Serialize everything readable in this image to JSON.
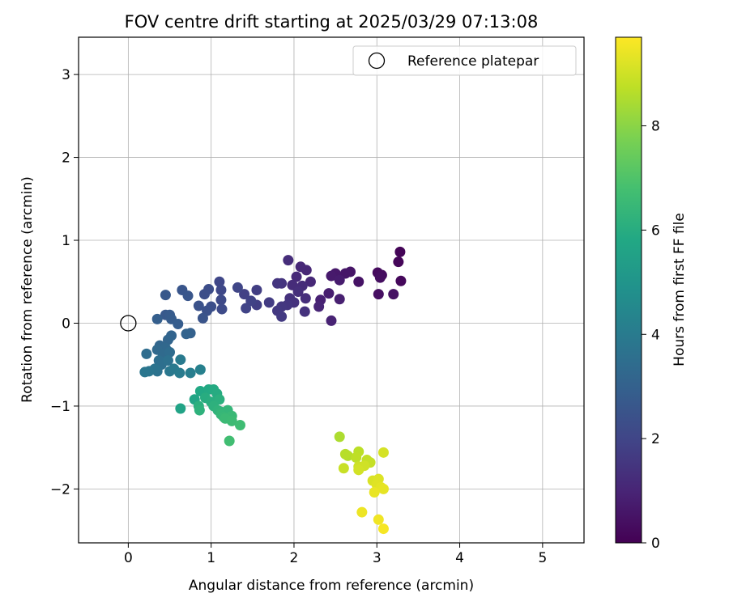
{
  "chart_data": {
    "type": "scatter",
    "title": "FOV centre drift starting at 2025/03/29 07:13:08",
    "xlabel": "Angular distance from reference (arcmin)",
    "ylabel": "Rotation from reference (arcmin)",
    "xlim": [
      -0.6,
      5.5
    ],
    "ylim": [
      -2.65,
      3.45
    ],
    "xticks": [
      0,
      1,
      2,
      3,
      4,
      5
    ],
    "yticks": [
      -2,
      -1,
      0,
      1,
      2,
      3
    ],
    "grid": true,
    "legend": {
      "position": "top-right",
      "entries": [
        "Reference platepar"
      ]
    },
    "reference_point": {
      "x": 0,
      "y": 0,
      "label": "Reference platepar"
    },
    "colorbar": {
      "label": "Hours from first FF file",
      "min": 0,
      "max": 9.7,
      "ticks": [
        0,
        2,
        4,
        6,
        8
      ],
      "colormap": "viridis"
    },
    "series": [
      {
        "points": [
          {
            "x": 3.28,
            "y": 0.86,
            "c": 0.1
          },
          {
            "x": 3.26,
            "y": 0.74,
            "c": 0.15
          },
          {
            "x": 3.29,
            "y": 0.51,
            "c": 0.2
          },
          {
            "x": 3.01,
            "y": 0.61,
            "c": 0.25
          },
          {
            "x": 3.06,
            "y": 0.58,
            "c": 0.3
          },
          {
            "x": 3.04,
            "y": 0.55,
            "c": 0.35
          },
          {
            "x": 3.02,
            "y": 0.35,
            "c": 0.4
          },
          {
            "x": 3.2,
            "y": 0.35,
            "c": 0.45
          },
          {
            "x": 2.78,
            "y": 0.5,
            "c": 0.5
          },
          {
            "x": 2.68,
            "y": 0.62,
            "c": 0.55
          },
          {
            "x": 2.62,
            "y": 0.6,
            "c": 0.6
          },
          {
            "x": 2.5,
            "y": 0.6,
            "c": 0.65
          },
          {
            "x": 2.45,
            "y": 0.57,
            "c": 0.7
          },
          {
            "x": 2.55,
            "y": 0.52,
            "c": 0.75
          },
          {
            "x": 2.42,
            "y": 0.36,
            "c": 0.8
          },
          {
            "x": 2.55,
            "y": 0.29,
            "c": 0.85
          },
          {
            "x": 2.32,
            "y": 0.28,
            "c": 0.9
          },
          {
            "x": 2.45,
            "y": 0.03,
            "c": 0.95
          },
          {
            "x": 2.3,
            "y": 0.2,
            "c": 1.0
          },
          {
            "x": 2.15,
            "y": 0.64,
            "c": 1.05
          },
          {
            "x": 2.08,
            "y": 0.68,
            "c": 1.1
          },
          {
            "x": 2.2,
            "y": 0.5,
            "c": 1.1
          },
          {
            "x": 2.03,
            "y": 0.56,
            "c": 1.15
          },
          {
            "x": 2.1,
            "y": 0.45,
            "c": 1.2
          },
          {
            "x": 1.98,
            "y": 0.46,
            "c": 1.2
          },
          {
            "x": 1.93,
            "y": 0.76,
            "c": 1.25
          },
          {
            "x": 2.05,
            "y": 0.38,
            "c": 1.3
          },
          {
            "x": 2.14,
            "y": 0.3,
            "c": 1.3
          },
          {
            "x": 1.95,
            "y": 0.3,
            "c": 1.35
          },
          {
            "x": 2.0,
            "y": 0.25,
            "c": 1.4
          },
          {
            "x": 2.13,
            "y": 0.14,
            "c": 1.4
          },
          {
            "x": 1.85,
            "y": 0.48,
            "c": 1.45
          },
          {
            "x": 1.8,
            "y": 0.48,
            "c": 1.5
          },
          {
            "x": 1.92,
            "y": 0.22,
            "c": 1.5
          },
          {
            "x": 1.85,
            "y": 0.2,
            "c": 1.55
          },
          {
            "x": 1.8,
            "y": 0.15,
            "c": 1.6
          },
          {
            "x": 1.85,
            "y": 0.08,
            "c": 1.65
          },
          {
            "x": 1.7,
            "y": 0.25,
            "c": 1.7
          },
          {
            "x": 1.55,
            "y": 0.4,
            "c": 1.75
          },
          {
            "x": 1.55,
            "y": 0.22,
            "c": 1.8
          },
          {
            "x": 1.4,
            "y": 0.35,
            "c": 1.85
          },
          {
            "x": 1.48,
            "y": 0.27,
            "c": 1.9
          },
          {
            "x": 1.42,
            "y": 0.18,
            "c": 1.95
          },
          {
            "x": 1.32,
            "y": 0.43,
            "c": 2.0
          },
          {
            "x": 1.1,
            "y": 0.5,
            "c": 2.05
          },
          {
            "x": 1.12,
            "y": 0.4,
            "c": 2.1
          },
          {
            "x": 1.12,
            "y": 0.28,
            "c": 2.15
          },
          {
            "x": 1.13,
            "y": 0.17,
            "c": 2.2
          },
          {
            "x": 0.97,
            "y": 0.41,
            "c": 2.25
          },
          {
            "x": 0.92,
            "y": 0.35,
            "c": 2.3
          },
          {
            "x": 1.0,
            "y": 0.2,
            "c": 2.35
          },
          {
            "x": 0.95,
            "y": 0.15,
            "c": 2.4
          },
          {
            "x": 0.85,
            "y": 0.21,
            "c": 2.45
          },
          {
            "x": 0.9,
            "y": 0.06,
            "c": 2.5
          },
          {
            "x": 0.65,
            "y": 0.4,
            "c": 2.55
          },
          {
            "x": 0.72,
            "y": 0.33,
            "c": 2.6
          },
          {
            "x": 0.45,
            "y": 0.34,
            "c": 2.65
          },
          {
            "x": 0.45,
            "y": 0.1,
            "c": 2.7
          },
          {
            "x": 0.5,
            "y": 0.1,
            "c": 2.75
          },
          {
            "x": 0.52,
            "y": 0.05,
            "c": 2.8
          },
          {
            "x": 0.6,
            "y": -0.01,
            "c": 2.85
          },
          {
            "x": 0.35,
            "y": 0.05,
            "c": 2.9
          },
          {
            "x": 0.75,
            "y": -0.12,
            "c": 3.0
          },
          {
            "x": 0.7,
            "y": -0.13,
            "c": 3.05
          },
          {
            "x": 0.52,
            "y": -0.15,
            "c": 3.1
          },
          {
            "x": 0.48,
            "y": -0.2,
            "c": 3.15
          },
          {
            "x": 0.38,
            "y": -0.27,
            "c": 3.2
          },
          {
            "x": 0.45,
            "y": -0.3,
            "c": 3.25
          },
          {
            "x": 0.35,
            "y": -0.32,
            "c": 3.3
          },
          {
            "x": 0.42,
            "y": -0.38,
            "c": 3.35
          },
          {
            "x": 0.5,
            "y": -0.35,
            "c": 3.4
          },
          {
            "x": 0.22,
            "y": -0.37,
            "c": 3.45
          },
          {
            "x": 0.37,
            "y": -0.45,
            "c": 3.5
          },
          {
            "x": 0.4,
            "y": -0.5,
            "c": 3.55
          },
          {
            "x": 0.48,
            "y": -0.45,
            "c": 3.6
          },
          {
            "x": 0.35,
            "y": -0.58,
            "c": 3.65
          },
          {
            "x": 0.32,
            "y": -0.55,
            "c": 3.7
          },
          {
            "x": 0.25,
            "y": -0.58,
            "c": 3.75
          },
          {
            "x": 0.2,
            "y": -0.59,
            "c": 3.8
          },
          {
            "x": 0.5,
            "y": -0.58,
            "c": 3.85
          },
          {
            "x": 0.55,
            "y": -0.55,
            "c": 3.9
          },
          {
            "x": 0.63,
            "y": -0.44,
            "c": 3.95
          },
          {
            "x": 0.62,
            "y": -0.6,
            "c": 4.0
          },
          {
            "x": 0.75,
            "y": -0.6,
            "c": 4.1
          },
          {
            "x": 0.87,
            "y": -0.56,
            "c": 4.2
          },
          {
            "x": 0.63,
            "y": -1.03,
            "c": 5.6
          },
          {
            "x": 0.8,
            "y": -0.92,
            "c": 5.7
          },
          {
            "x": 0.87,
            "y": -0.82,
            "c": 5.8
          },
          {
            "x": 0.97,
            "y": -0.8,
            "c": 5.85
          },
          {
            "x": 1.03,
            "y": -0.8,
            "c": 5.9
          },
          {
            "x": 1.07,
            "y": -0.85,
            "c": 5.95
          },
          {
            "x": 0.93,
            "y": -0.9,
            "c": 6.0
          },
          {
            "x": 1.0,
            "y": -0.95,
            "c": 6.05
          },
          {
            "x": 1.1,
            "y": -0.92,
            "c": 6.1
          },
          {
            "x": 0.85,
            "y": -1.0,
            "c": 6.1
          },
          {
            "x": 1.03,
            "y": -1.0,
            "c": 6.15
          },
          {
            "x": 0.86,
            "y": -1.05,
            "c": 6.2
          },
          {
            "x": 1.08,
            "y": -1.05,
            "c": 6.25
          },
          {
            "x": 1.12,
            "y": -1.07,
            "c": 6.3
          },
          {
            "x": 1.2,
            "y": -1.05,
            "c": 6.35
          },
          {
            "x": 1.12,
            "y": -1.1,
            "c": 6.4
          },
          {
            "x": 1.15,
            "y": -1.13,
            "c": 6.45
          },
          {
            "x": 1.25,
            "y": -1.12,
            "c": 6.5
          },
          {
            "x": 1.17,
            "y": -1.15,
            "c": 6.55
          },
          {
            "x": 1.25,
            "y": -1.18,
            "c": 6.6
          },
          {
            "x": 1.35,
            "y": -1.23,
            "c": 6.65
          },
          {
            "x": 1.22,
            "y": -1.42,
            "c": 6.7
          },
          {
            "x": 2.55,
            "y": -1.37,
            "c": 8.5
          },
          {
            "x": 2.65,
            "y": -1.6,
            "c": 8.6
          },
          {
            "x": 2.62,
            "y": -1.58,
            "c": 8.65
          },
          {
            "x": 2.78,
            "y": -1.55,
            "c": 8.7
          },
          {
            "x": 2.75,
            "y": -1.62,
            "c": 8.75
          },
          {
            "x": 2.88,
            "y": -1.65,
            "c": 8.8
          },
          {
            "x": 2.92,
            "y": -1.68,
            "c": 8.85
          },
          {
            "x": 2.6,
            "y": -1.75,
            "c": 8.9
          },
          {
            "x": 2.78,
            "y": -1.73,
            "c": 8.95
          },
          {
            "x": 2.85,
            "y": -1.72,
            "c": 9.0
          },
          {
            "x": 2.78,
            "y": -1.77,
            "c": 9.05
          },
          {
            "x": 3.08,
            "y": -1.56,
            "c": 9.1
          },
          {
            "x": 2.95,
            "y": -1.9,
            "c": 9.15
          },
          {
            "x": 3.02,
            "y": -1.88,
            "c": 9.2
          },
          {
            "x": 3.0,
            "y": -1.95,
            "c": 9.25
          },
          {
            "x": 3.05,
            "y": -1.98,
            "c": 9.3
          },
          {
            "x": 3.08,
            "y": -2.0,
            "c": 9.35
          },
          {
            "x": 2.97,
            "y": -2.04,
            "c": 9.4
          },
          {
            "x": 2.82,
            "y": -2.28,
            "c": 9.45
          },
          {
            "x": 3.02,
            "y": -2.37,
            "c": 9.5
          },
          {
            "x": 3.08,
            "y": -2.48,
            "c": 9.6
          }
        ]
      }
    ]
  }
}
